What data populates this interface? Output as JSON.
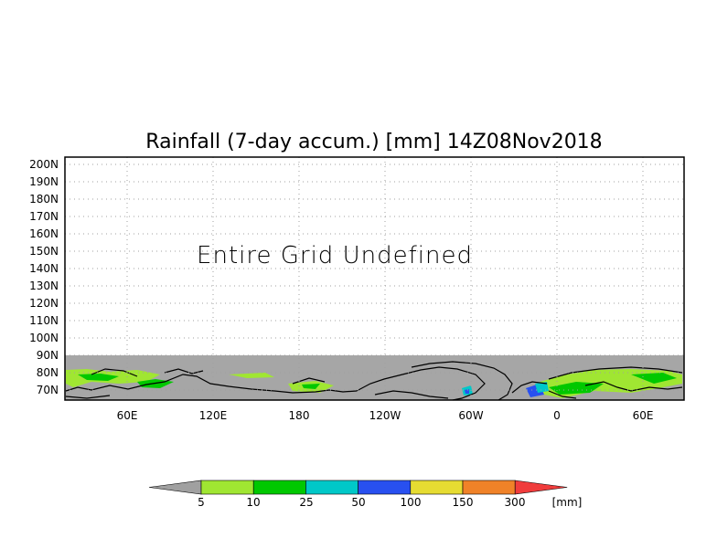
{
  "title": "Rainfall (7-day accum.) [mm] 14Z08Nov2018",
  "overlay_text": "Entire Grid Undefined",
  "lat_labels": [
    "200N",
    "190N",
    "180N",
    "170N",
    "160N",
    "150N",
    "140N",
    "130N",
    "120N",
    "110N",
    "100N",
    "90N",
    "80N",
    "70N"
  ],
  "lon_labels": [
    "60E",
    "120E",
    "180",
    "120W",
    "60W",
    "0",
    "60E"
  ],
  "legend": {
    "unit": "[mm]",
    "ticks": [
      "5",
      "10",
      "25",
      "50",
      "100",
      "150",
      "300"
    ],
    "colors": [
      "#a0a0a0",
      "#a0e632",
      "#00c800",
      "#00c8c8",
      "#2850f0",
      "#e6dc32",
      "#f08228",
      "#f03c3c"
    ]
  },
  "colors": {
    "undefined_gray": "#a6a6a6",
    "grid_dots": "#a0a0a0",
    "coast": "#000000"
  }
}
